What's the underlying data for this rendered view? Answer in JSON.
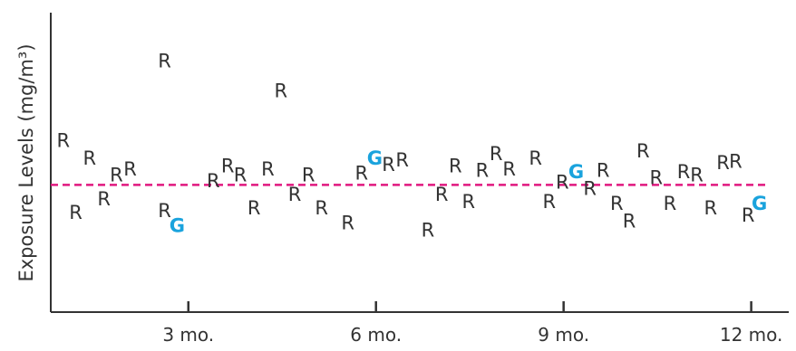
{
  "chart_data": {
    "type": "scatter",
    "title": "",
    "xlabel": "",
    "ylabel": "Exposure Levels (mg/m³)",
    "x_unit": "months",
    "xlim": [
      0.8,
      12.6
    ],
    "ylim": [
      0,
      10
    ],
    "x_ticks": [
      {
        "value": 3,
        "label": "3 mo."
      },
      {
        "value": 6,
        "label": "6 mo."
      },
      {
        "value": 9,
        "label": "9 mo."
      },
      {
        "value": 12,
        "label": "12 mo."
      }
    ],
    "grid": false,
    "reference_line": {
      "y": 4.25,
      "style": "dashed",
      "color": "#e0177f"
    },
    "colors": {
      "R": "#333333",
      "G": "#1aa3dd",
      "axis": "#333333"
    },
    "points": [
      {
        "x": 1.0,
        "y": 5.7,
        "label": "R"
      },
      {
        "x": 1.2,
        "y": 3.3,
        "label": "R"
      },
      {
        "x": 1.42,
        "y": 5.1,
        "label": "R"
      },
      {
        "x": 1.65,
        "y": 3.75,
        "label": "R"
      },
      {
        "x": 1.85,
        "y": 4.55,
        "label": "R"
      },
      {
        "x": 2.07,
        "y": 4.75,
        "label": "R"
      },
      {
        "x": 2.62,
        "y": 8.35,
        "label": "R"
      },
      {
        "x": 2.62,
        "y": 3.35,
        "label": "R"
      },
      {
        "x": 2.82,
        "y": 2.85,
        "label": "G"
      },
      {
        "x": 3.4,
        "y": 4.35,
        "label": "R"
      },
      {
        "x": 3.63,
        "y": 4.85,
        "label": "R"
      },
      {
        "x": 3.83,
        "y": 4.55,
        "label": "R"
      },
      {
        "x": 4.05,
        "y": 3.45,
        "label": "R"
      },
      {
        "x": 4.27,
        "y": 4.75,
        "label": "R"
      },
      {
        "x": 4.48,
        "y": 7.35,
        "label": "R"
      },
      {
        "x": 4.7,
        "y": 3.9,
        "label": "R"
      },
      {
        "x": 4.92,
        "y": 4.55,
        "label": "R"
      },
      {
        "x": 5.13,
        "y": 3.45,
        "label": "R"
      },
      {
        "x": 5.55,
        "y": 2.95,
        "label": "R"
      },
      {
        "x": 5.77,
        "y": 4.6,
        "label": "R"
      },
      {
        "x": 5.98,
        "y": 5.1,
        "label": "G"
      },
      {
        "x": 6.2,
        "y": 4.9,
        "label": "R"
      },
      {
        "x": 6.42,
        "y": 5.05,
        "label": "R"
      },
      {
        "x": 6.83,
        "y": 2.7,
        "label": "R"
      },
      {
        "x": 7.05,
        "y": 3.9,
        "label": "R"
      },
      {
        "x": 7.27,
        "y": 4.85,
        "label": "R"
      },
      {
        "x": 7.48,
        "y": 3.65,
        "label": "R"
      },
      {
        "x": 7.7,
        "y": 4.7,
        "label": "R"
      },
      {
        "x": 7.92,
        "y": 5.25,
        "label": "R"
      },
      {
        "x": 8.13,
        "y": 4.75,
        "label": "R"
      },
      {
        "x": 8.55,
        "y": 5.1,
        "label": "R"
      },
      {
        "x": 8.77,
        "y": 3.65,
        "label": "R"
      },
      {
        "x": 8.98,
        "y": 4.3,
        "label": "R"
      },
      {
        "x": 9.2,
        "y": 4.65,
        "label": "G"
      },
      {
        "x": 9.42,
        "y": 4.1,
        "label": "R"
      },
      {
        "x": 9.63,
        "y": 4.7,
        "label": "R"
      },
      {
        "x": 9.85,
        "y": 3.6,
        "label": "R"
      },
      {
        "x": 10.05,
        "y": 3.0,
        "label": "R"
      },
      {
        "x": 10.27,
        "y": 5.35,
        "label": "R"
      },
      {
        "x": 10.48,
        "y": 4.45,
        "label": "R"
      },
      {
        "x": 10.7,
        "y": 3.6,
        "label": "R"
      },
      {
        "x": 10.92,
        "y": 4.65,
        "label": "R"
      },
      {
        "x": 11.13,
        "y": 4.55,
        "label": "R"
      },
      {
        "x": 11.35,
        "y": 3.45,
        "label": "R"
      },
      {
        "x": 11.55,
        "y": 4.95,
        "label": "R"
      },
      {
        "x": 11.75,
        "y": 5.0,
        "label": "R"
      },
      {
        "x": 11.95,
        "y": 3.2,
        "label": "R"
      },
      {
        "x": 12.13,
        "y": 3.6,
        "label": "G"
      }
    ]
  }
}
